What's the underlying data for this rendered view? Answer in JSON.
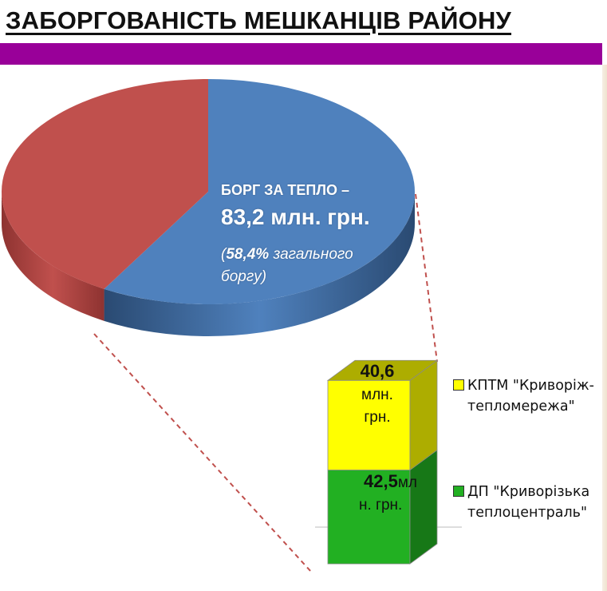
{
  "title": "ЗАБОРГОВАНІСТЬ МЕШКАНЦІВ РАЙОНУ",
  "chart_data": [
    {
      "type": "pie",
      "style": "3d",
      "slices": [
        {
          "value": 58.4,
          "color": "#4f81bd",
          "side_color": "#2a4a72"
        },
        {
          "value": 41.6,
          "color": "#c0504d",
          "side_color": "#8e3331"
        }
      ],
      "labels": {
        "heading": "БОРГ ЗА ТЕПЛО –",
        "amount": "83,2 млн. грн.",
        "share_prefix": "(",
        "share_value": "58,4%",
        "share_text": " загального боргу)"
      }
    },
    {
      "type": "bar",
      "style": "3d-stacked",
      "total": 83.2,
      "segments": [
        {
          "name": "ДП \"Криворізька теплоцентраль\"",
          "value": 42.5,
          "color": "#22b022",
          "label_value": "42,5",
          "label_rest_1": "мл",
          "label_rest_2": "н. грн."
        },
        {
          "name": "КПТМ \"Криворіж-тепломережа\"",
          "value": 40.6,
          "color": "#ffff00",
          "label_value": "40,6",
          "label_rest_1": "млн.",
          "label_rest_2": "грн."
        }
      ],
      "legend": [
        {
          "line1": "КПТМ \"Криворіж-",
          "line2": "тепломережа\"",
          "color": "#ffff00"
        },
        {
          "line1": "ДП \"Криворізька",
          "line2": "теплоцентраль\"",
          "color": "#22b022"
        }
      ]
    }
  ]
}
